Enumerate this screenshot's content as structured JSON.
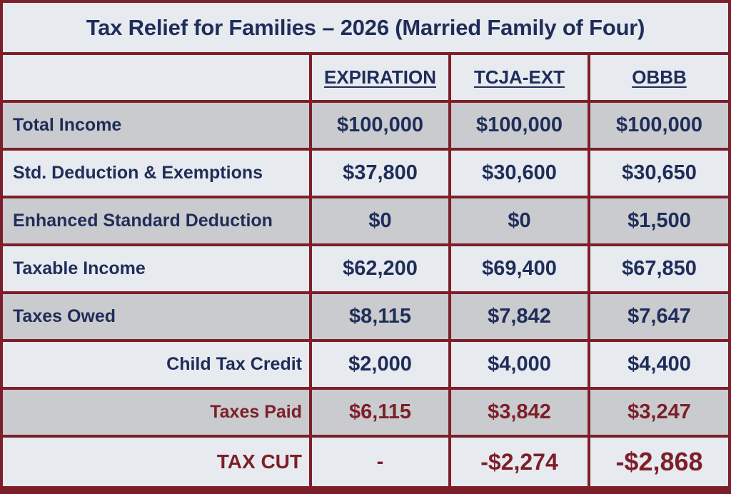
{
  "chart_data": {
    "type": "table",
    "title": "Tax Relief for Families – 2026 (Married Family of Four)",
    "columns": [
      "",
      "EXPIRATION",
      "TCJA-EXT",
      "OBBB"
    ],
    "rows": [
      {
        "label": "Total Income",
        "values": [
          "$100,000",
          "$100,000",
          "$100,000"
        ]
      },
      {
        "label": "Std. Deduction & Exemptions",
        "values": [
          "$37,800",
          "$30,600",
          "$30,650"
        ]
      },
      {
        "label": "Enhanced Standard Deduction",
        "values": [
          "$0",
          "$0",
          "$1,500"
        ]
      },
      {
        "label": "Taxable Income",
        "values": [
          "$62,200",
          "$69,400",
          "$67,850"
        ]
      },
      {
        "label": "Taxes Owed",
        "values": [
          "$8,115",
          "$7,842",
          "$7,647"
        ]
      },
      {
        "label": "Child Tax Credit",
        "values": [
          "$2,000",
          "$4,000",
          "$4,400"
        ]
      },
      {
        "label": "Taxes Paid",
        "values": [
          "$6,115",
          "$3,842",
          "$3,247"
        ]
      },
      {
        "label": "TAX CUT",
        "values": [
          "-",
          "-$2,274",
          "-$2,868"
        ]
      }
    ]
  },
  "colors": {
    "frame": "#7d1f2a",
    "text": "#1f2d5a",
    "highlight_text": "#7d1f2a",
    "light_row": "#e7eaee",
    "dark_row": "#c9cbce"
  }
}
